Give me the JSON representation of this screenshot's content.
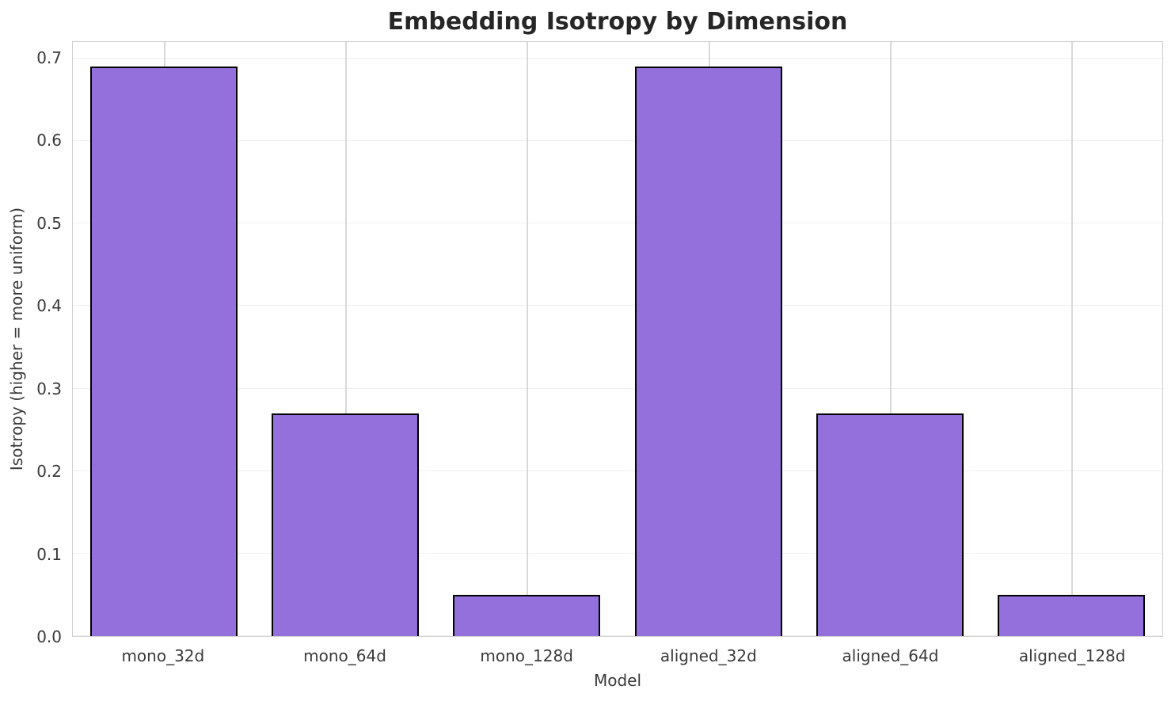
{
  "chart_data": {
    "type": "bar",
    "title": "Embedding Isotropy by Dimension",
    "xlabel": "Model",
    "ylabel": "Isotropy (higher = more uniform)",
    "categories": [
      "mono_32d",
      "mono_64d",
      "mono_128d",
      "aligned_32d",
      "aligned_64d",
      "aligned_128d"
    ],
    "values": [
      0.69,
      0.27,
      0.05,
      0.69,
      0.27,
      0.05
    ],
    "ylim": [
      0,
      0.72
    ],
    "yticks": [
      0.0,
      0.1,
      0.2,
      0.3,
      0.4,
      0.5,
      0.6,
      0.7
    ],
    "ytick_format_decimals": 1,
    "grid": "on",
    "legend": "none",
    "bar_color": "#9370DB",
    "bar_edge_color": "#000000",
    "bar_width_fraction": 0.81,
    "grid_color_horizontal": "#efefef",
    "grid_color_vertical": "#d9d9d9",
    "spine_color": "#d0d0d0",
    "title_color": "#262626",
    "text_color": "#3a3a3a",
    "background_color": "#ffffff"
  }
}
